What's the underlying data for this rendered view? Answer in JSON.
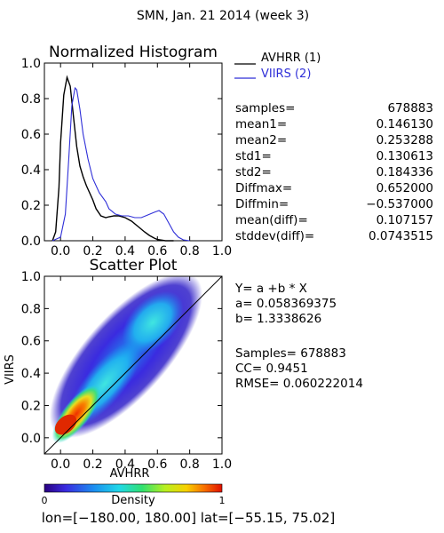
{
  "header": {
    "title": "SMN,  Jan. 21 2014 (week 3)"
  },
  "colors": {
    "avhrr": "#000000",
    "viirs": "#2f2fd8",
    "identity_line": "#000000"
  },
  "histogram": {
    "title": "Normalized Histogram",
    "legend": {
      "position": "right",
      "entries": [
        {
          "label": "AVHRR (1)",
          "color": "#000000"
        },
        {
          "label": "VIIRS (2)",
          "color": "#2f2fd8"
        }
      ]
    },
    "stats": [
      {
        "label": "samples=",
        "value": "678883"
      },
      {
        "label": "mean1=",
        "value": "0.146130"
      },
      {
        "label": "mean2=",
        "value": "0.253288"
      },
      {
        "label": "std1=",
        "value": "0.130613"
      },
      {
        "label": "std2=",
        "value": "0.184336"
      },
      {
        "label": "Diffmax=",
        "value": "0.652000"
      },
      {
        "label": "Diffmin=",
        "value": "−0.537000"
      },
      {
        "label": "mean(diff)=",
        "value": "0.107157"
      },
      {
        "label": "stddev(diff)=",
        "value": "0.0743515"
      }
    ]
  },
  "scatter": {
    "title": "Scatter Plot",
    "fit": [
      "Y= a +b * X",
      "a= 0.058369375",
      "b= 1.3338626"
    ],
    "metrics": [
      "Samples= 678883",
      "CC=  0.9451",
      "RMSE= 0.060222014"
    ]
  },
  "colorbar": {
    "label": "Density",
    "min_label": "0",
    "max_label": "1"
  },
  "footer": {
    "lon_label": "lon=",
    "lon_range": "[−180.00, 180.00]",
    "lat_label": "lat=",
    "lat_range": "[−55.15, 75.02]"
  },
  "chart_data": [
    {
      "type": "line",
      "title": "Normalized Histogram",
      "xlabel": "",
      "ylabel": "",
      "xlim": [
        -0.1,
        1.0
      ],
      "ylim": [
        0.0,
        1.0
      ],
      "x_ticks": [
        "0.0",
        "0.2",
        "0.4",
        "0.6",
        "0.8",
        "1.0"
      ],
      "y_ticks": [
        "0.0",
        "0.2",
        "0.4",
        "0.6",
        "0.8",
        "1.0"
      ],
      "grid": false,
      "series": [
        {
          "name": "AVHRR (1)",
          "color": "#000000",
          "x": [
            -0.05,
            -0.03,
            -0.01,
            0.0,
            0.02,
            0.04,
            0.06,
            0.08,
            0.1,
            0.12,
            0.14,
            0.16,
            0.18,
            0.2,
            0.22,
            0.25,
            0.28,
            0.3,
            0.33,
            0.36,
            0.4,
            0.44,
            0.48,
            0.52,
            0.55,
            0.58,
            0.6,
            0.65,
            0.7
          ],
          "y": [
            0.0,
            0.05,
            0.3,
            0.55,
            0.82,
            0.92,
            0.87,
            0.7,
            0.53,
            0.42,
            0.36,
            0.31,
            0.27,
            0.23,
            0.18,
            0.14,
            0.13,
            0.135,
            0.14,
            0.14,
            0.13,
            0.11,
            0.08,
            0.05,
            0.03,
            0.015,
            0.007,
            0.0,
            0.0
          ]
        },
        {
          "name": "VIIRS (2)",
          "color": "#2f2fd8",
          "x": [
            -0.05,
            0.0,
            0.03,
            0.05,
            0.07,
            0.09,
            0.1,
            0.12,
            0.14,
            0.17,
            0.2,
            0.24,
            0.28,
            0.3,
            0.34,
            0.38,
            0.42,
            0.46,
            0.5,
            0.54,
            0.58,
            0.61,
            0.64,
            0.67,
            0.7,
            0.73,
            0.76,
            0.8
          ],
          "y": [
            0.0,
            0.02,
            0.15,
            0.45,
            0.76,
            0.86,
            0.85,
            0.74,
            0.6,
            0.46,
            0.35,
            0.27,
            0.22,
            0.18,
            0.15,
            0.14,
            0.14,
            0.13,
            0.13,
            0.145,
            0.16,
            0.17,
            0.15,
            0.1,
            0.05,
            0.02,
            0.005,
            0.0
          ]
        }
      ]
    },
    {
      "type": "heatmap",
      "title": "Scatter Plot",
      "xlabel": "AVHRR",
      "ylabel": "VIIRS",
      "xlim": [
        -0.1,
        1.0
      ],
      "ylim": [
        -0.1,
        1.0
      ],
      "x_ticks": [
        "0.0",
        "0.2",
        "0.4",
        "0.6",
        "0.8",
        "1.0"
      ],
      "y_ticks": [
        "0.0",
        "0.2",
        "0.4",
        "0.6",
        "0.8",
        "1.0"
      ],
      "grid": false,
      "identity_line": true,
      "fit": {
        "a": 0.058369375,
        "b": 1.3338626
      },
      "density_ridge": {
        "x": [
          0.0,
          0.05,
          0.1,
          0.15,
          0.2,
          0.25,
          0.3,
          0.35,
          0.4,
          0.45,
          0.5,
          0.55
        ],
        "y": [
          0.04,
          0.12,
          0.2,
          0.28,
          0.35,
          0.42,
          0.49,
          0.55,
          0.61,
          0.66,
          0.7,
          0.72
        ]
      },
      "colorbar": {
        "label": "Density",
        "range": [
          0,
          1
        ],
        "colormap": "rainbow"
      }
    }
  ]
}
